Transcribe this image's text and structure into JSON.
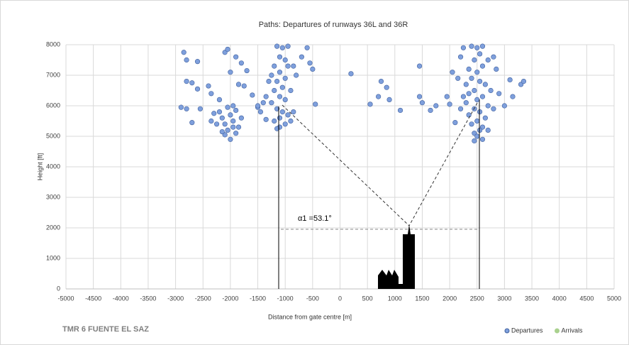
{
  "chart_data": {
    "type": "scatter",
    "title": "Paths: Departures of runways 36L and 36R",
    "x_label": "Distance from gate centre [m]",
    "y_label": "Height [ft]",
    "annotation": "α1 =53.1°",
    "site_label": "TMR 6  FUENTE  EL SAZ",
    "xlim": [
      -5000,
      5000
    ],
    "ylim": [
      0,
      8000
    ],
    "xticks": [
      -5000,
      -4500,
      -4000,
      -3500,
      -3000,
      -2500,
      -2000,
      -1500,
      -1000,
      -500,
      0,
      500,
      1000,
      1500,
      2000,
      2500,
      3000,
      3500,
      4000,
      4500,
      5000
    ],
    "yticks": [
      0,
      1000,
      2000,
      3000,
      4000,
      5000,
      6000,
      7000,
      8000
    ],
    "grid": true,
    "legend": "bottom-right",
    "series": [
      {
        "name": "Departures",
        "color": "#7e9fdc",
        "x": [
          -2850,
          -2800,
          -2600,
          -2800,
          -2700,
          -2600,
          -2900,
          -2800,
          -2550,
          -2350,
          -2400,
          -2100,
          -2050,
          -1900,
          -1800,
          -1700,
          -2000,
          -1850,
          -1750,
          -2200,
          -1600,
          -2700,
          -2350,
          -1500,
          -2200,
          -2150,
          -2100,
          -2050,
          -2000,
          -1950,
          -1900,
          -1850,
          -2250,
          -2100,
          -2000,
          -1950,
          -2050,
          -2150,
          -1800,
          -1900,
          -2300,
          -1950,
          -1150,
          -1050,
          -950,
          -1100,
          -1000,
          -1200,
          -1100,
          -1000,
          -1150,
          -1050,
          -1200,
          -1100,
          -1000,
          -1250,
          -1150,
          -1050,
          -950,
          -1100,
          -1200,
          -1000,
          -1100,
          -1150,
          -900,
          -1300,
          -1350,
          -850,
          -800,
          -700,
          -600,
          -550,
          -500,
          -450,
          -1400,
          -1450,
          -1350,
          -1500,
          -900,
          -850,
          -950,
          -1250,
          200,
          550,
          700,
          750,
          850,
          900,
          1100,
          1450,
          1450,
          1500,
          1650,
          1750,
          1950,
          2000,
          2050,
          2100,
          2150,
          2200,
          2250,
          2800,
          2850,
          2900,
          3000,
          3100,
          3150,
          3300,
          3350,
          2400,
          2500,
          2600,
          2550,
          2450,
          2600,
          2500,
          2400,
          2550,
          2650,
          2450,
          2350,
          2600,
          2500,
          2300,
          2700,
          2450,
          2550,
          2350,
          2650,
          2500,
          2400,
          2600,
          2550,
          2450,
          2500,
          2600,
          2450,
          2700,
          2250,
          2200,
          2750,
          2800,
          2350,
          2700,
          2300
        ],
        "values": [
          7750,
          7500,
          7450,
          6800,
          6750,
          6550,
          5950,
          5900,
          5900,
          6400,
          6650,
          7750,
          7850,
          7600,
          7400,
          7150,
          7100,
          6700,
          6650,
          6200,
          6350,
          5450,
          5500,
          5950,
          5800,
          5600,
          5400,
          5200,
          5700,
          5500,
          5850,
          5300,
          5400,
          5050,
          4900,
          6000,
          5950,
          5150,
          5600,
          5100,
          5750,
          5300,
          7950,
          7900,
          7950,
          7600,
          7500,
          7300,
          7100,
          6900,
          6800,
          6600,
          6500,
          6300,
          6200,
          6100,
          5900,
          5800,
          5700,
          5600,
          5500,
          5400,
          5300,
          5250,
          6500,
          6800,
          6300,
          7300,
          7000,
          7600,
          7900,
          7400,
          7200,
          6050,
          6100,
          5800,
          5550,
          6000,
          5500,
          5800,
          7300,
          7000,
          7050,
          6050,
          6300,
          6800,
          6600,
          6200,
          5850,
          7300,
          6300,
          6100,
          5850,
          6000,
          6300,
          6050,
          7100,
          5450,
          6900,
          7600,
          7900,
          7600,
          7200,
          6400,
          6000,
          6850,
          6300,
          6700,
          6800,
          7950,
          7900,
          7950,
          7700,
          7500,
          7300,
          7100,
          6900,
          6800,
          6700,
          6500,
          6400,
          6300,
          6200,
          6100,
          6000,
          5900,
          5800,
          5700,
          5600,
          5500,
          5400,
          5300,
          5200,
          5100,
          5000,
          4900,
          4850,
          5200,
          6300,
          5900,
          6500,
          5900,
          7200,
          7500,
          6700
        ]
      },
      {
        "name": "Arrivals",
        "color": "#a9d18e",
        "x": [],
        "values": []
      }
    ]
  }
}
